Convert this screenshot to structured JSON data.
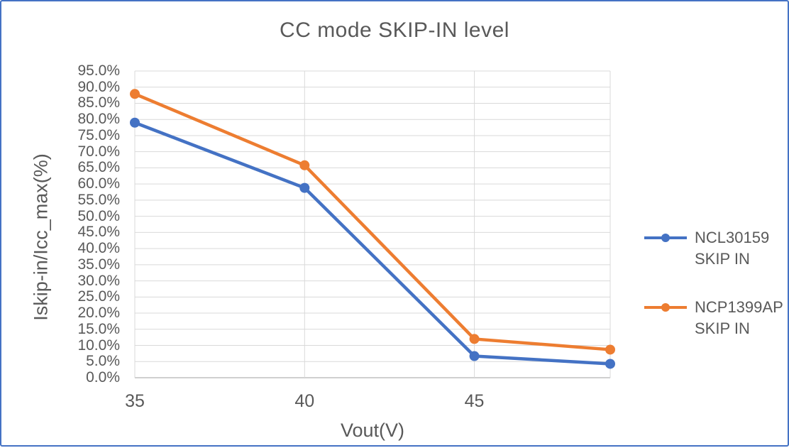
{
  "frame": {
    "background": "#FFFFFF",
    "border_color": "#4472C4"
  },
  "colors": {
    "text": "#595959",
    "gridline": "#D9D9D9",
    "axis_line": "#BFBFBF"
  },
  "chart_data": {
    "type": "line",
    "title": "CC mode SKIP-IN level",
    "xlabel": "Vout(V)",
    "ylabel": "Iskip-in/Icc_max(%)",
    "x": [
      35,
      40,
      45,
      49
    ],
    "series": [
      {
        "name": "NCL30159 SKIP IN",
        "legend_lines": [
          "NCL30159",
          "SKIP IN"
        ],
        "color": "#4472C4",
        "values": [
          79.0,
          58.8,
          6.7,
          4.3
        ]
      },
      {
        "name": "NCP1399AP SKIP IN",
        "legend_lines": [
          "NCP1399AP",
          "SKIP IN"
        ],
        "color": "#ED7D31",
        "values": [
          87.9,
          65.8,
          12.0,
          8.7
        ]
      }
    ],
    "xlim": [
      35,
      49
    ],
    "ylim": [
      0,
      95
    ],
    "x_ticks": [
      {
        "value": 35,
        "label": "35"
      },
      {
        "value": 40,
        "label": "40"
      },
      {
        "value": 45,
        "label": "45"
      }
    ],
    "y_tick_step": 5,
    "y_tick_labels": [
      "0.0%",
      "5.0%",
      "10.0%",
      "15.0%",
      "20.0%",
      "25.0%",
      "30.0%",
      "35.0%",
      "40.0%",
      "45.0%",
      "50.0%",
      "55.0%",
      "60.0%",
      "65.0%",
      "70.0%",
      "75.0%",
      "80.0%",
      "85.0%",
      "90.0%",
      "95.0%"
    ],
    "grid": true,
    "legend_position": "right",
    "marker": "circle"
  }
}
